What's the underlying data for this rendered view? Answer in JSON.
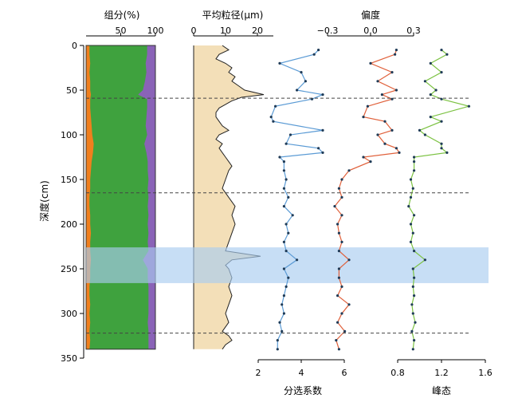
{
  "chart_data": {
    "type": "line",
    "y_axis": {
      "label": "深度(cm)",
      "range": [
        0,
        350
      ],
      "ticks": [
        "0",
        "50",
        "100",
        "150",
        "200",
        "250",
        "300",
        "350"
      ]
    },
    "highlight_band_depth": [
      226,
      266
    ],
    "dashed_line_depths": [
      59,
      165,
      322
    ],
    "panels": {
      "composition": {
        "title": "组分(%)",
        "ticks": [
          "50",
          "100"
        ],
        "x_range": [
          0,
          100
        ],
        "colors": {
          "clay": "#f07f1e",
          "silt": "#3fa23e",
          "sand": "#8a63b7"
        },
        "depth": [
          0,
          10,
          20,
          30,
          40,
          50,
          55,
          60,
          70,
          80,
          90,
          100,
          110,
          120,
          130,
          140,
          150,
          160,
          170,
          180,
          190,
          200,
          210,
          220,
          230,
          240,
          250,
          260,
          270,
          280,
          290,
          300,
          310,
          320,
          330,
          340
        ],
        "clay_top": [
          5,
          5,
          6,
          5,
          6,
          6,
          7,
          6,
          6,
          7,
          8,
          9,
          11,
          10,
          8,
          7,
          6,
          6,
          5,
          5,
          6,
          6,
          7,
          6,
          6,
          7,
          6,
          6,
          5,
          5,
          6,
          5,
          6,
          5,
          6,
          5
        ],
        "silt_top": [
          88,
          88,
          86,
          87,
          85,
          82,
          75,
          88,
          88,
          87,
          86,
          88,
          84,
          87,
          89,
          89,
          90,
          89,
          90,
          89,
          90,
          89,
          90,
          89,
          90,
          82,
          89,
          89,
          90,
          90,
          90,
          90,
          89,
          90,
          90,
          90
        ]
      },
      "mean_grain_size": {
        "title": "平均粒径(μm)",
        "ticks": [
          "0",
          "10",
          "20"
        ],
        "x_range": [
          0,
          25
        ],
        "fill_color": "#f3dfb8",
        "depth": [
          0,
          5,
          10,
          15,
          20,
          25,
          30,
          35,
          40,
          45,
          50,
          55,
          58,
          62,
          66,
          70,
          75,
          80,
          85,
          90,
          95,
          100,
          105,
          110,
          115,
          120,
          125,
          130,
          135,
          140,
          150,
          160,
          170,
          180,
          190,
          200,
          210,
          220,
          230,
          236,
          240,
          246,
          250,
          260,
          270,
          280,
          290,
          300,
          310,
          320,
          325,
          330,
          335,
          340
        ],
        "value": [
          9,
          11,
          8,
          7,
          10,
          12,
          11,
          13,
          12,
          14,
          16,
          22,
          15,
          12,
          10,
          8,
          7,
          7,
          8,
          9,
          11,
          8,
          7,
          9,
          8,
          9,
          10,
          11,
          12,
          11,
          10,
          9,
          11,
          13,
          12,
          13,
          12,
          11,
          10,
          21,
          12,
          10,
          11,
          12,
          11,
          12,
          11,
          10,
          11,
          9,
          11,
          12,
          10,
          9
        ]
      },
      "sorting": {
        "title": "分选系数",
        "ticks": [
          "2",
          "4",
          "6"
        ],
        "x_range": [
          2,
          6
        ],
        "color": "#5b9bd5",
        "depth": [
          5,
          10,
          20,
          30,
          40,
          50,
          55,
          60,
          68,
          80,
          85,
          95,
          100,
          110,
          115,
          120,
          125,
          130,
          140,
          150,
          160,
          170,
          180,
          190,
          200,
          210,
          220,
          230,
          240,
          250,
          260,
          270,
          280,
          290,
          300,
          310,
          320,
          330,
          340
        ],
        "value": [
          4.8,
          4.6,
          3.0,
          4.0,
          4.2,
          3.8,
          5.0,
          4.5,
          2.8,
          2.6,
          2.7,
          5.0,
          3.5,
          3.3,
          4.8,
          5.0,
          3.0,
          3.2,
          3.2,
          3.3,
          3.2,
          3.4,
          3.2,
          3.6,
          3.3,
          3.4,
          3.2,
          3.3,
          3.8,
          3.2,
          3.4,
          3.3,
          3.2,
          3.1,
          3.2,
          3.0,
          3.1,
          2.9,
          2.9
        ]
      },
      "skewness": {
        "title": "偏度",
        "ticks": [
          "−0.3",
          "0.0",
          "0.3"
        ],
        "x_range": [
          -0.3,
          0.3
        ],
        "color": "#e0603a",
        "depth": [
          5,
          10,
          20,
          30,
          40,
          50,
          55,
          60,
          68,
          80,
          85,
          95,
          100,
          110,
          115,
          120,
          125,
          130,
          140,
          150,
          160,
          170,
          180,
          190,
          200,
          210,
          220,
          230,
          240,
          250,
          260,
          270,
          280,
          290,
          300,
          310,
          320,
          330,
          340
        ],
        "value": [
          0.18,
          0.17,
          0.0,
          0.15,
          0.05,
          0.18,
          0.08,
          0.15,
          -0.02,
          -0.05,
          0.1,
          0.15,
          0.05,
          0.1,
          0.18,
          0.2,
          -0.05,
          0.0,
          -0.15,
          -0.2,
          -0.22,
          -0.2,
          -0.25,
          -0.2,
          -0.23,
          -0.22,
          -0.2,
          -0.22,
          -0.15,
          -0.22,
          -0.22,
          -0.2,
          -0.23,
          -0.15,
          -0.2,
          -0.23,
          -0.18,
          -0.24,
          -0.22
        ]
      },
      "kurtosis": {
        "title": "峰态",
        "ticks": [
          "0.8",
          "1.2",
          "1.6"
        ],
        "x_range": [
          0.8,
          1.6
        ],
        "color": "#7cc242",
        "depth": [
          5,
          10,
          20,
          30,
          40,
          50,
          55,
          60,
          68,
          80,
          85,
          95,
          100,
          110,
          115,
          120,
          125,
          130,
          140,
          150,
          160,
          170,
          180,
          190,
          200,
          210,
          220,
          230,
          240,
          250,
          260,
          270,
          280,
          290,
          300,
          310,
          320,
          330,
          340
        ],
        "value": [
          1.2,
          1.25,
          1.1,
          1.2,
          1.05,
          1.15,
          1.1,
          1.2,
          1.45,
          1.1,
          1.2,
          1.0,
          1.05,
          1.2,
          1.2,
          1.25,
          0.95,
          0.95,
          0.95,
          0.92,
          0.94,
          0.92,
          0.9,
          0.95,
          0.92,
          0.94,
          0.92,
          0.95,
          1.05,
          0.94,
          0.95,
          0.94,
          0.95,
          0.93,
          0.94,
          0.96,
          0.93,
          0.95,
          0.94
        ]
      }
    }
  }
}
